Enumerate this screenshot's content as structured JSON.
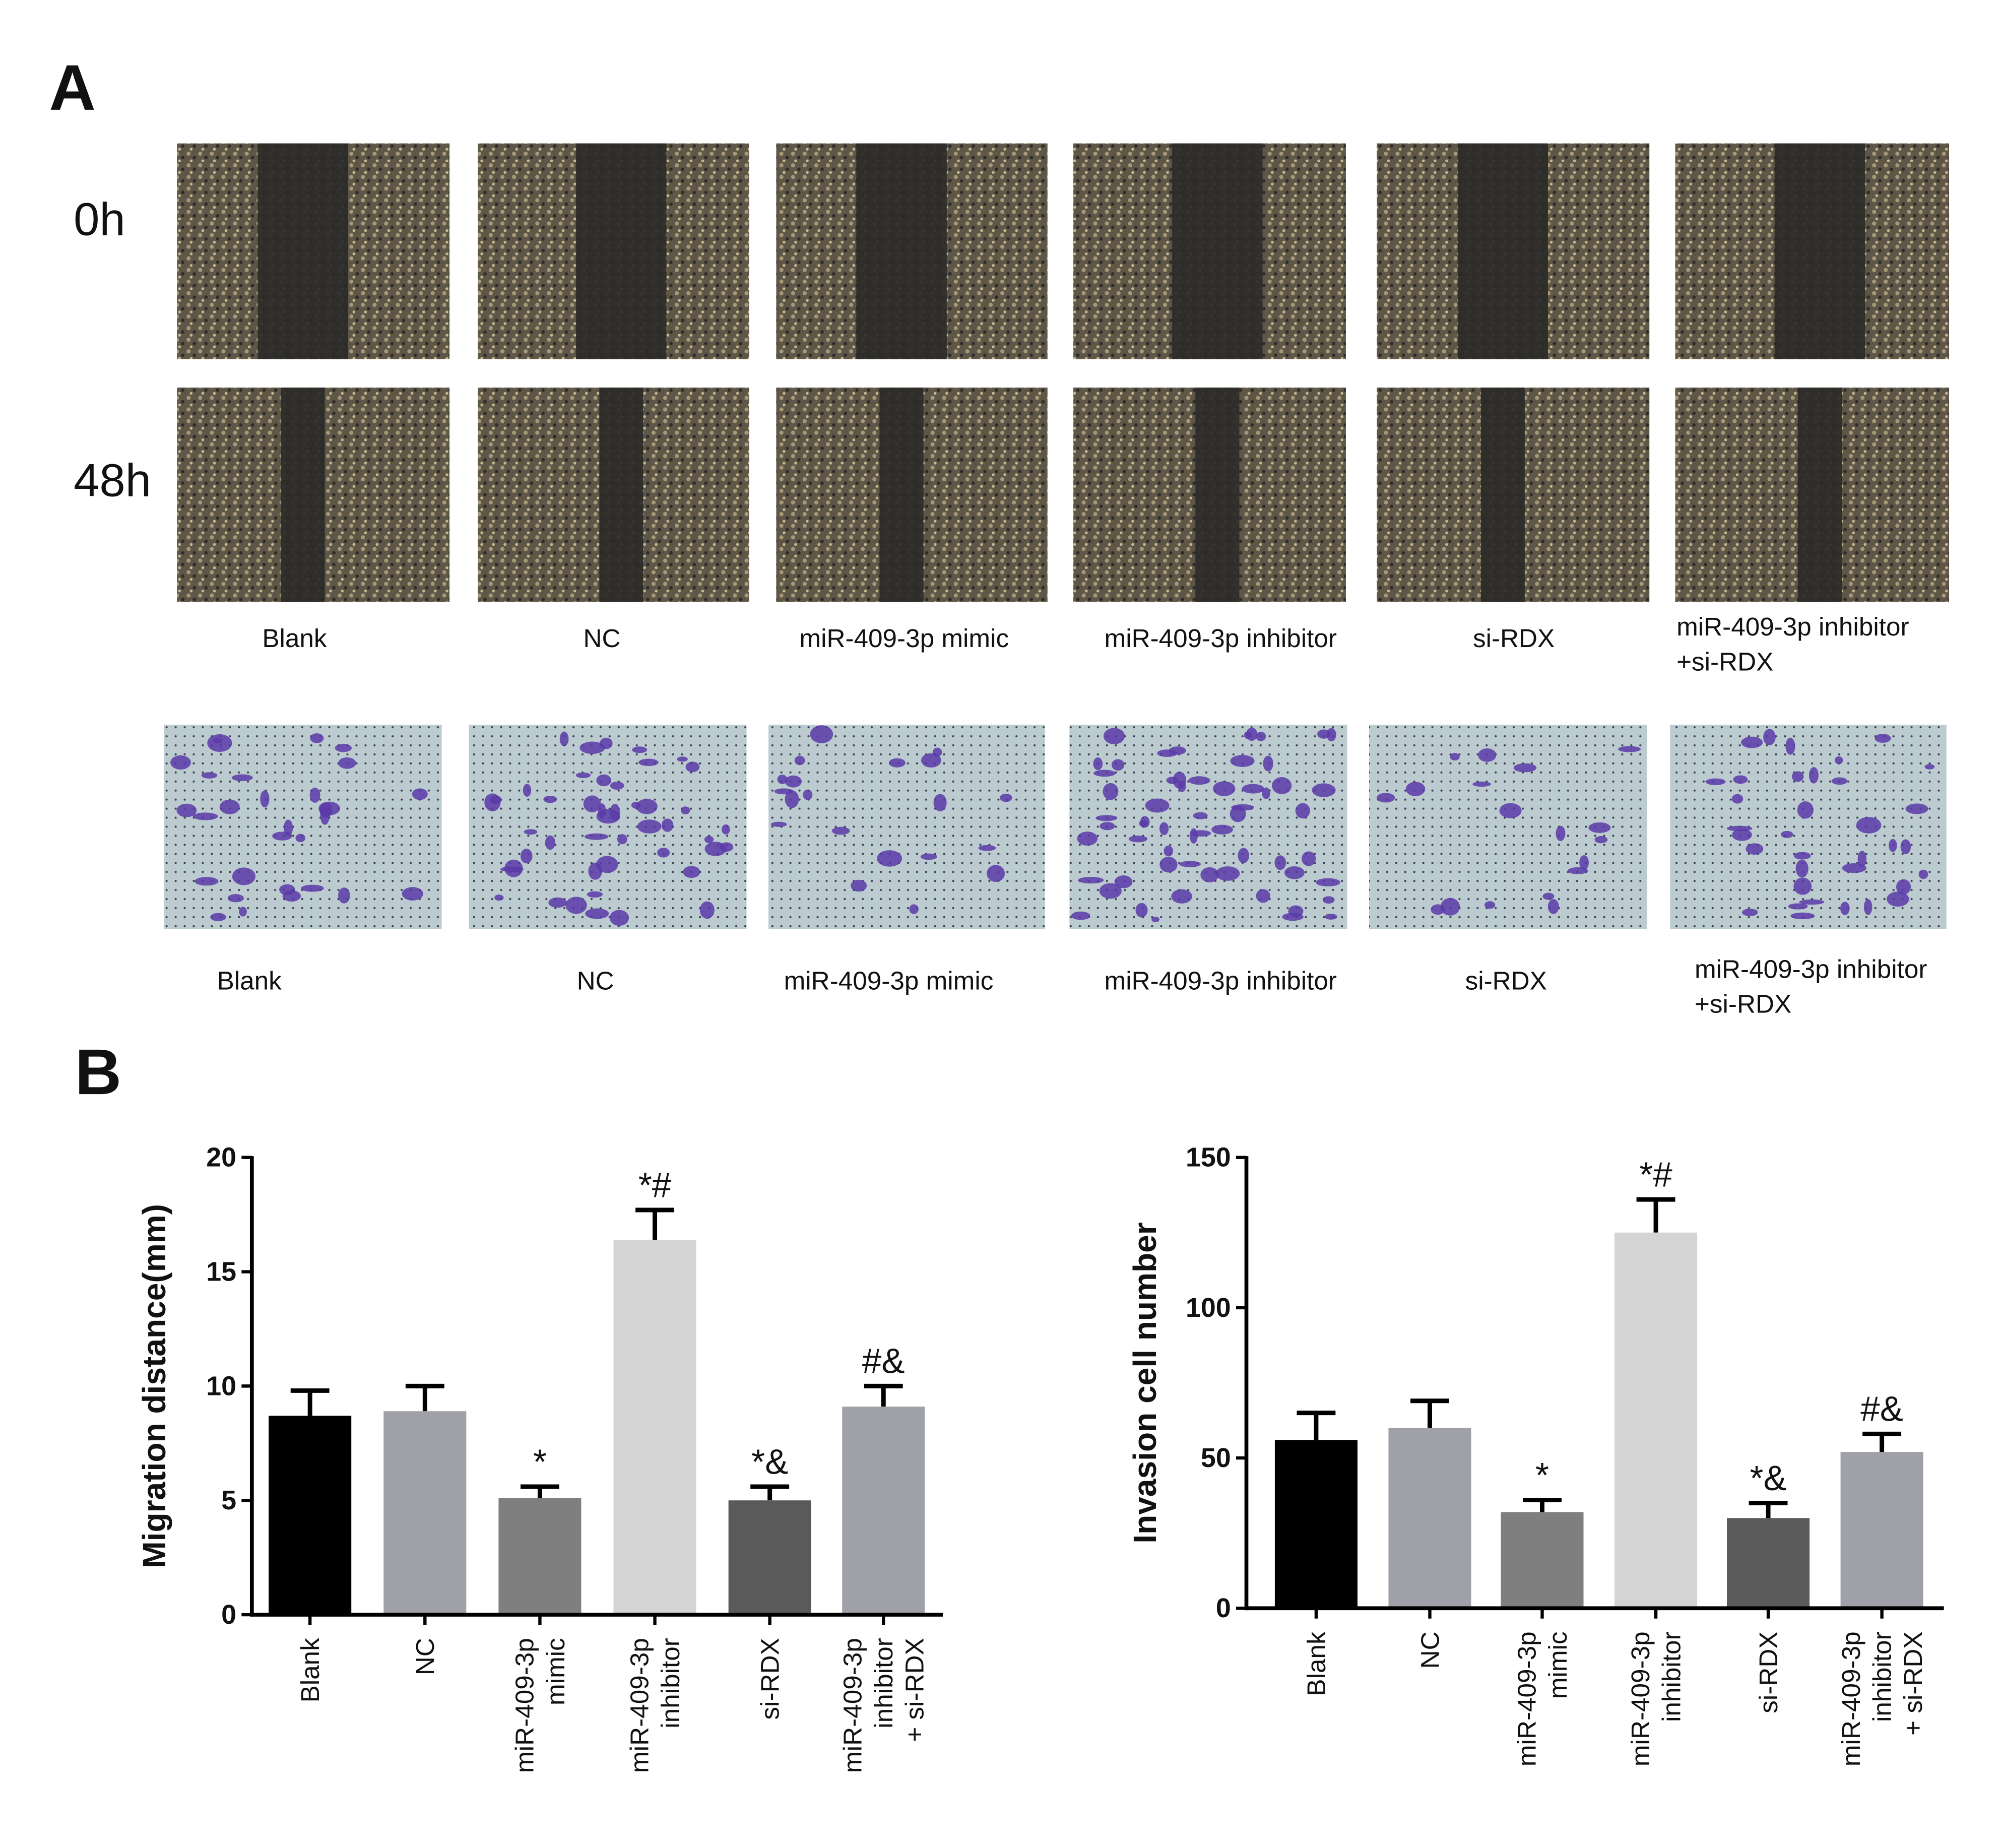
{
  "panel_a": {
    "label": "A",
    "time_labels": [
      "0h",
      "48h"
    ],
    "wound_captions": [
      [
        "Blank"
      ],
      [
        "NC"
      ],
      [
        "miR-409-3p mimic"
      ],
      [
        "miR-409-3p inhibitor"
      ],
      [
        "si-RDX"
      ],
      [
        "miR-409-3p inhibitor",
        "+si-RDX"
      ]
    ],
    "invasion_captions": [
      [
        "Blank"
      ],
      [
        "NC"
      ],
      [
        "miR-409-3p mimic"
      ],
      [
        "miR-409-3p inhibitor"
      ],
      [
        "si-RDX"
      ],
      [
        "miR-409-3p inhibitor",
        "+si-RDX"
      ]
    ]
  },
  "panel_b": {
    "label": "B"
  },
  "chart_data": [
    {
      "type": "bar",
      "y_label": "Migration distance(mm)",
      "categories": [
        [
          "Blank"
        ],
        [
          "NC"
        ],
        [
          "miR-409-3p",
          "mimic"
        ],
        [
          "miR-409-3p",
          "inhibitor"
        ],
        [
          "si-RDX"
        ],
        [
          "miR-409-3p",
          "inhibitor",
          "+ si-RDX"
        ]
      ],
      "values": [
        8.7,
        8.9,
        5.1,
        16.4,
        5.0,
        9.1
      ],
      "errors": [
        1.1,
        1.1,
        0.5,
        1.3,
        0.6,
        0.9
      ],
      "colors": [
        "#000000",
        "#a0a0a8",
        "#7f7f7f",
        "#d4d4d4",
        "#5a5a5a",
        "#a0a0a8"
      ],
      "annotations": [
        null,
        null,
        "*",
        "*#",
        "*&",
        "#&"
      ],
      "ylim": [
        0,
        20
      ],
      "yticks": [
        0,
        5,
        10,
        15,
        20
      ]
    },
    {
      "type": "bar",
      "y_label": "Invasion cell number",
      "categories": [
        [
          "Blank"
        ],
        [
          "NC"
        ],
        [
          "miR-409-3p",
          "mimic"
        ],
        [
          "miR-409-3p",
          "inhibitor"
        ],
        [
          "si-RDX"
        ],
        [
          "miR-409-3p",
          "inhibitor",
          "+ si-RDX"
        ]
      ],
      "values": [
        56,
        60,
        32,
        125,
        30,
        52
      ],
      "errors": [
        9,
        9,
        4,
        11,
        5,
        6
      ],
      "colors": [
        "#000000",
        "#a0a0a8",
        "#7f7f7f",
        "#d4d4d4",
        "#5a5a5a",
        "#a0a0a8"
      ],
      "annotations": [
        null,
        null,
        "*",
        "*#",
        "*&",
        "#&"
      ],
      "ylim": [
        0,
        150
      ],
      "yticks": [
        0,
        50,
        100,
        150
      ]
    }
  ]
}
